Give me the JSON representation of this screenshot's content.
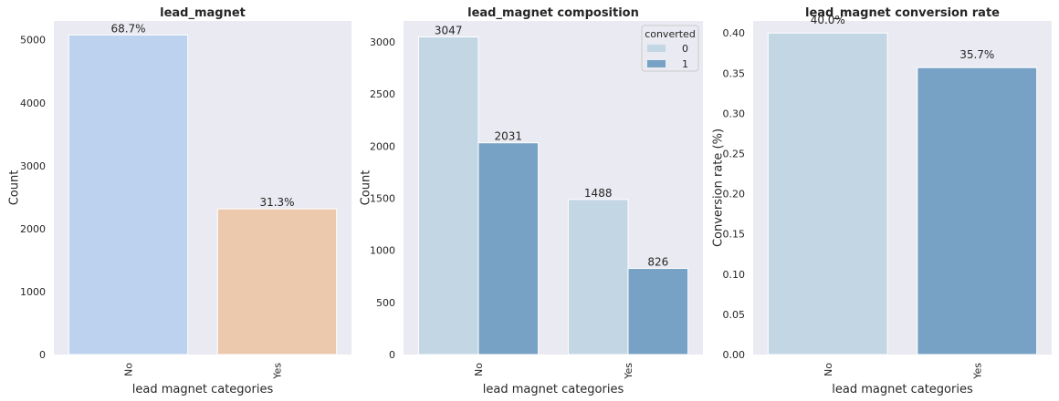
{
  "chart_data": [
    {
      "type": "bar",
      "title": "lead_magnet",
      "xlabel": "lead magnet categories",
      "ylabel": "Count",
      "categories": [
        "No",
        "Yes"
      ],
      "values": [
        5078,
        2314
      ],
      "colors": [
        "#bcd2ee",
        "#ecc8ad"
      ],
      "data_labels": [
        "68.7%",
        "31.3%"
      ],
      "ylim": [
        0,
        5300
      ],
      "yticks": [
        0,
        1000,
        2000,
        3000,
        4000,
        5000
      ],
      "ytick_labels": [
        "0",
        "1000",
        "2000",
        "3000",
        "4000",
        "5000"
      ],
      "grid": false
    },
    {
      "type": "bar",
      "title": "lead_magnet composition",
      "xlabel": "lead magnet categories",
      "ylabel": "Count",
      "categories": [
        "No",
        "Yes"
      ],
      "series": [
        {
          "name": "0",
          "values": [
            3047,
            1488
          ],
          "color": "#c3d6e4"
        },
        {
          "name": "1",
          "values": [
            2031,
            826
          ],
          "color": "#77a2c5"
        }
      ],
      "data_labels": [
        [
          "3047",
          "1488"
        ],
        [
          "2031",
          "826"
        ]
      ],
      "legend": {
        "title": "converted",
        "placement": "top-right"
      },
      "ylim": [
        0,
        3200
      ],
      "yticks": [
        0,
        500,
        1000,
        1500,
        2000,
        2500,
        3000
      ],
      "ytick_labels": [
        "0",
        "500",
        "1000",
        "1500",
        "2000",
        "2500",
        "3000"
      ],
      "grid": false
    },
    {
      "type": "bar",
      "title": "lead_magnet conversion rate",
      "xlabel": "lead magnet categories",
      "ylabel": "Conversion rate (%)",
      "categories": [
        "No",
        "Yes"
      ],
      "values": [
        0.4,
        0.357
      ],
      "colors": [
        "#c3d6e4",
        "#77a2c5"
      ],
      "data_labels": [
        "40.0%",
        "35.7%"
      ],
      "ylim": [
        0,
        0.415
      ],
      "yticks": [
        0,
        0.05,
        0.1,
        0.15,
        0.2,
        0.25,
        0.3,
        0.35,
        0.4
      ],
      "ytick_labels": [
        "0.00",
        "0.05",
        "0.10",
        "0.15",
        "0.20",
        "0.25",
        "0.30",
        "0.35",
        "0.40"
      ],
      "grid": false
    }
  ]
}
